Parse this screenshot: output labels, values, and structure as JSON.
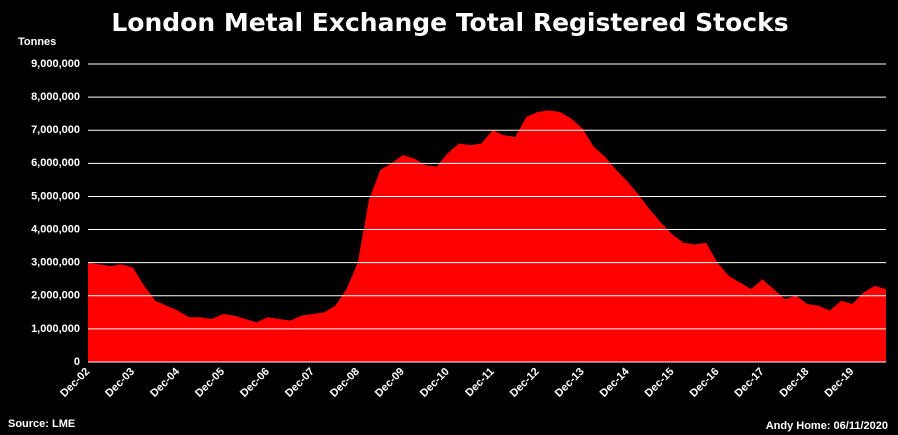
{
  "chart_data": {
    "type": "area",
    "title": "London Metal Exchange Total Registered Stocks",
    "y_label": "Tonnes",
    "source": "Source: LME",
    "credit": "Andy Home: 06/11/2020",
    "color": "#ff0000",
    "grid": true,
    "categories": [
      "Dec-02",
      null,
      null,
      null,
      "Dec-03",
      null,
      null,
      null,
      "Dec-04",
      null,
      null,
      null,
      "Dec-05",
      null,
      null,
      null,
      "Dec-06",
      null,
      null,
      null,
      "Dec-07",
      null,
      null,
      null,
      "Dec-08",
      null,
      null,
      null,
      "Dec-09",
      null,
      null,
      null,
      "Dec-10",
      null,
      null,
      null,
      "Dec-11",
      null,
      null,
      null,
      "Dec-12",
      null,
      null,
      null,
      "Dec-13",
      null,
      null,
      null,
      "Dec-14",
      null,
      null,
      null,
      "Dec-15",
      null,
      null,
      null,
      "Dec-16",
      null,
      null,
      null,
      "Dec-17",
      null,
      null,
      null,
      "Dec-18",
      null,
      null,
      null,
      "Dec-19",
      null,
      null,
      null
    ],
    "values": [
      3000000,
      2950000,
      2900000,
      2950000,
      2850000,
      2300000,
      1850000,
      1700000,
      1550000,
      1350000,
      1350000,
      1300000,
      1450000,
      1400000,
      1300000,
      1200000,
      1350000,
      1300000,
      1250000,
      1400000,
      1450000,
      1500000,
      1700000,
      2200000,
      3000000,
      4900000,
      5800000,
      6000000,
      6250000,
      6150000,
      5950000,
      5900000,
      6300000,
      6600000,
      6550000,
      6600000,
      7000000,
      6850000,
      6800000,
      7400000,
      7550000,
      7600000,
      7550000,
      7350000,
      7050000,
      6500000,
      6200000,
      5800000,
      5450000,
      5050000,
      4600000,
      4200000,
      3850000,
      3600000,
      3550000,
      3600000,
      3000000,
      2600000,
      2400000,
      2200000,
      2500000,
      2200000,
      1900000,
      2000000,
      1750000,
      1700000,
      1550000,
      1850000,
      1750000,
      2100000,
      2300000,
      2200000
    ],
    "ylim": [
      0,
      9000000
    ],
    "yticks": [
      0,
      {
        "value": 1000000,
        "label": "1,000,000"
      },
      {
        "value": 2000000,
        "label": "2,000,000"
      },
      {
        "value": 3000000,
        "label": "3,000,000"
      },
      {
        "value": 4000000,
        "label": "4,000,000"
      },
      {
        "value": 5000000,
        "label": "5,000,000"
      },
      {
        "value": 6000000,
        "label": "6,000,000"
      },
      {
        "value": 7000000,
        "label": "7,000,000"
      },
      {
        "value": 8000000,
        "label": "8,000,000"
      },
      {
        "value": 9000000,
        "label": "9,000,000"
      }
    ]
  }
}
